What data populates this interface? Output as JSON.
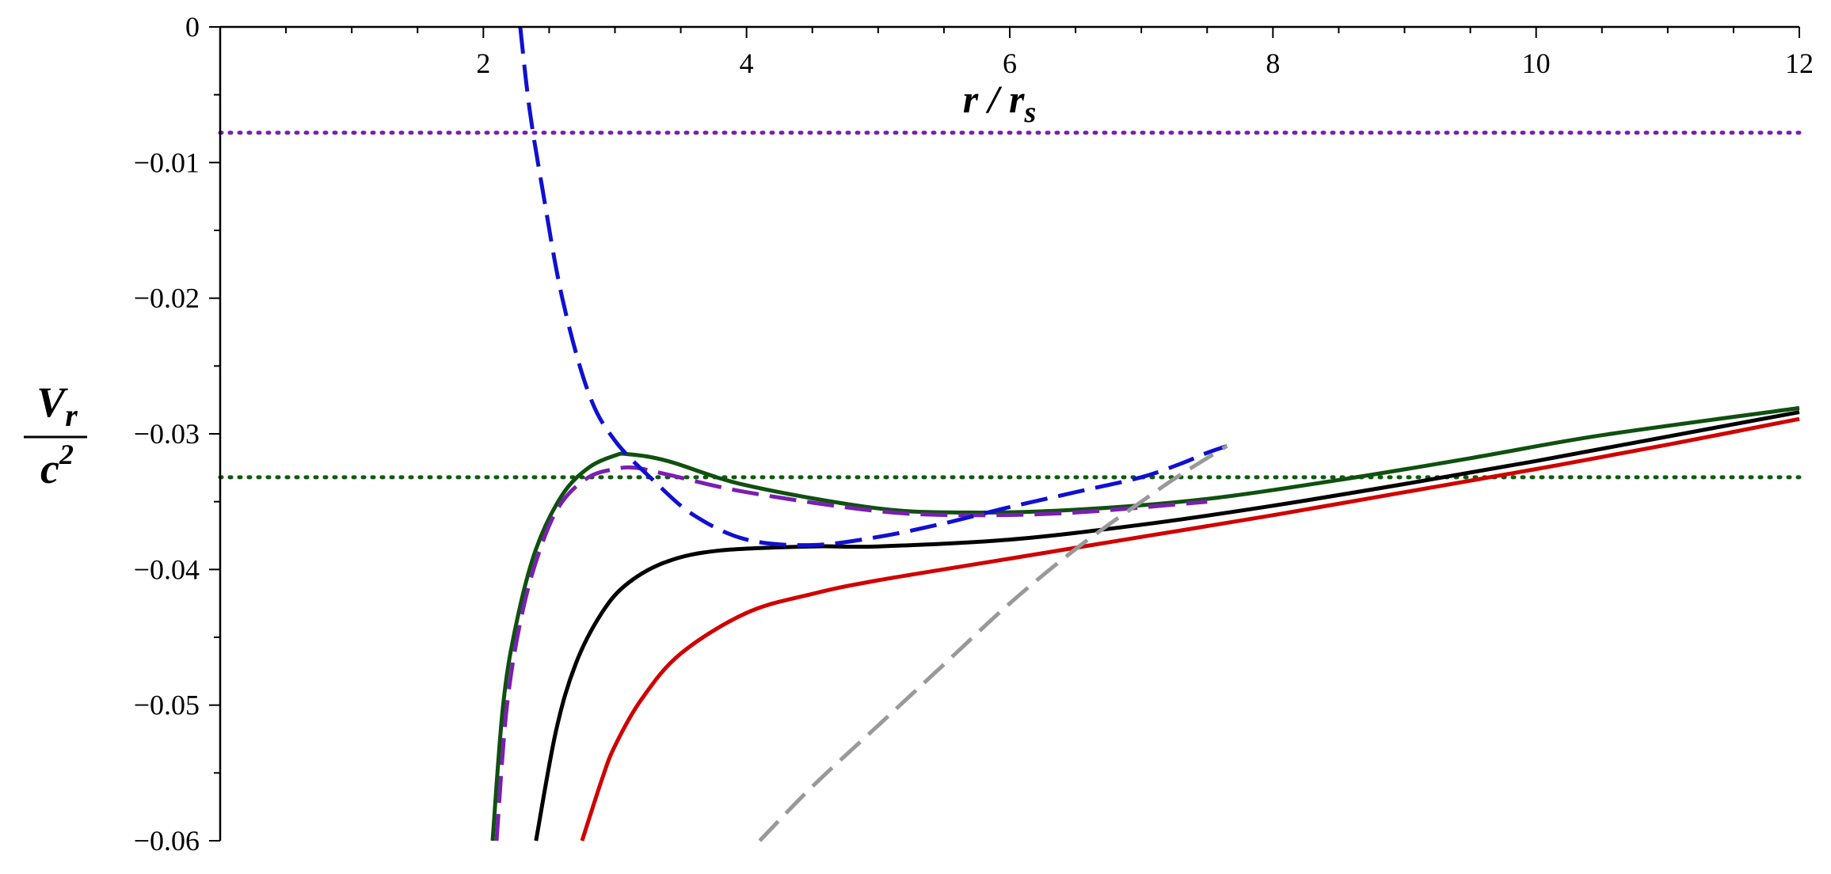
{
  "chart_data": {
    "type": "line",
    "title": "",
    "xlabel": {
      "main": "r / r",
      "sub": "s"
    },
    "ylabel": {
      "numerator_main": "V",
      "numerator_sub": "r",
      "denominator_main": "c",
      "denominator_sup": "2"
    },
    "xlim": [
      0,
      12
    ],
    "ylim": [
      -0.06,
      0
    ],
    "xticks": [
      2,
      4,
      6,
      8,
      10,
      12
    ],
    "xtick_labels": [
      "2",
      "4",
      "6",
      "8",
      "10",
      "12"
    ],
    "yticks": [
      0,
      -0.01,
      -0.02,
      -0.03,
      -0.04,
      -0.05,
      -0.06
    ],
    "ytick_labels": [
      "0",
      "−0.01",
      "−0.02",
      "−0.03",
      "−0.04",
      "−0.05",
      "−0.06"
    ],
    "grid": false,
    "legend": "none",
    "hlines": [
      {
        "y": -0.0078,
        "color": "#7a1fb0",
        "style": "dotted"
      },
      {
        "y": -0.0332,
        "color": "#0f5a0f",
        "style": "dotted"
      }
    ],
    "series": [
      {
        "color": "#d00000",
        "style": "solid",
        "points": [
          [
            2.75,
            -0.06
          ],
          [
            2.9,
            -0.0555
          ],
          [
            3.0,
            -0.053
          ],
          [
            3.2,
            -0.0496
          ],
          [
            3.5,
            -0.0462
          ],
          [
            4.0,
            -0.0432
          ],
          [
            4.5,
            -0.0418
          ],
          [
            5.0,
            -0.0408
          ],
          [
            6.0,
            -0.0392
          ],
          [
            7.0,
            -0.0376
          ],
          [
            8.0,
            -0.036
          ],
          [
            9.0,
            -0.0343
          ],
          [
            10.0,
            -0.0326
          ],
          [
            11.0,
            -0.0308
          ],
          [
            12.0,
            -0.0289
          ]
        ]
      },
      {
        "color": "#000000",
        "style": "solid",
        "points": [
          [
            2.4,
            -0.06
          ],
          [
            2.55,
            -0.052
          ],
          [
            2.7,
            -0.047
          ],
          [
            2.9,
            -0.0432
          ],
          [
            3.1,
            -0.041
          ],
          [
            3.4,
            -0.0394
          ],
          [
            3.8,
            -0.0386
          ],
          [
            4.5,
            -0.0383
          ],
          [
            5.0,
            -0.0383
          ],
          [
            6.0,
            -0.0378
          ],
          [
            7.0,
            -0.0367
          ],
          [
            8.0,
            -0.0353
          ],
          [
            9.0,
            -0.0337
          ],
          [
            10.0,
            -0.032
          ],
          [
            11.0,
            -0.0302
          ],
          [
            12.0,
            -0.0284
          ]
        ]
      },
      {
        "color": "#105010",
        "style": "solid",
        "points": [
          [
            2.07,
            -0.06
          ],
          [
            2.15,
            -0.05
          ],
          [
            2.25,
            -0.044
          ],
          [
            2.4,
            -0.0385
          ],
          [
            2.6,
            -0.0345
          ],
          [
            2.8,
            -0.0325
          ],
          [
            3.0,
            -0.0316
          ],
          [
            3.1,
            -0.0315
          ],
          [
            3.4,
            -0.032
          ],
          [
            4.0,
            -0.0338
          ],
          [
            5.0,
            -0.0355
          ],
          [
            5.7,
            -0.0358
          ],
          [
            6.5,
            -0.0356
          ],
          [
            7.5,
            -0.0348
          ],
          [
            8.5,
            -0.0334
          ],
          [
            9.5,
            -0.0318
          ],
          [
            10.5,
            -0.0301
          ],
          [
            12.0,
            -0.0281
          ]
        ]
      },
      {
        "color": "#7a1fb0",
        "style": "dashed",
        "points": [
          [
            2.1,
            -0.06
          ],
          [
            2.18,
            -0.05
          ],
          [
            2.3,
            -0.043
          ],
          [
            2.45,
            -0.038
          ],
          [
            2.6,
            -0.035
          ],
          [
            2.8,
            -0.0332
          ],
          [
            3.0,
            -0.0326
          ],
          [
            3.15,
            -0.0325
          ],
          [
            3.4,
            -0.033
          ],
          [
            4.0,
            -0.0343
          ],
          [
            5.0,
            -0.0357
          ],
          [
            5.7,
            -0.036
          ],
          [
            6.5,
            -0.0358
          ],
          [
            7.5,
            -0.035
          ]
        ]
      },
      {
        "color": "#1010d0",
        "style": "dashed",
        "points": [
          [
            2.28,
            0.0
          ],
          [
            2.35,
            -0.006
          ],
          [
            2.45,
            -0.012
          ],
          [
            2.6,
            -0.02
          ],
          [
            2.8,
            -0.027
          ],
          [
            3.0,
            -0.0305
          ],
          [
            3.3,
            -0.0335
          ],
          [
            3.6,
            -0.036
          ],
          [
            4.0,
            -0.0378
          ],
          [
            4.5,
            -0.0382
          ],
          [
            5.0,
            -0.0376
          ],
          [
            5.5,
            -0.0366
          ],
          [
            6.0,
            -0.0354
          ],
          [
            6.5,
            -0.0343
          ],
          [
            7.0,
            -0.0332
          ],
          [
            7.3,
            -0.0322
          ],
          [
            7.5,
            -0.0314
          ],
          [
            7.65,
            -0.0309
          ]
        ]
      },
      {
        "color": "#999999",
        "style": "dashed",
        "points": [
          [
            4.1,
            -0.06
          ],
          [
            4.5,
            -0.056
          ],
          [
            5.0,
            -0.0515
          ],
          [
            5.5,
            -0.047
          ],
          [
            6.0,
            -0.0425
          ],
          [
            6.5,
            -0.0385
          ],
          [
            7.0,
            -0.035
          ],
          [
            7.3,
            -0.033
          ],
          [
            7.65,
            -0.0309
          ]
        ]
      }
    ]
  }
}
